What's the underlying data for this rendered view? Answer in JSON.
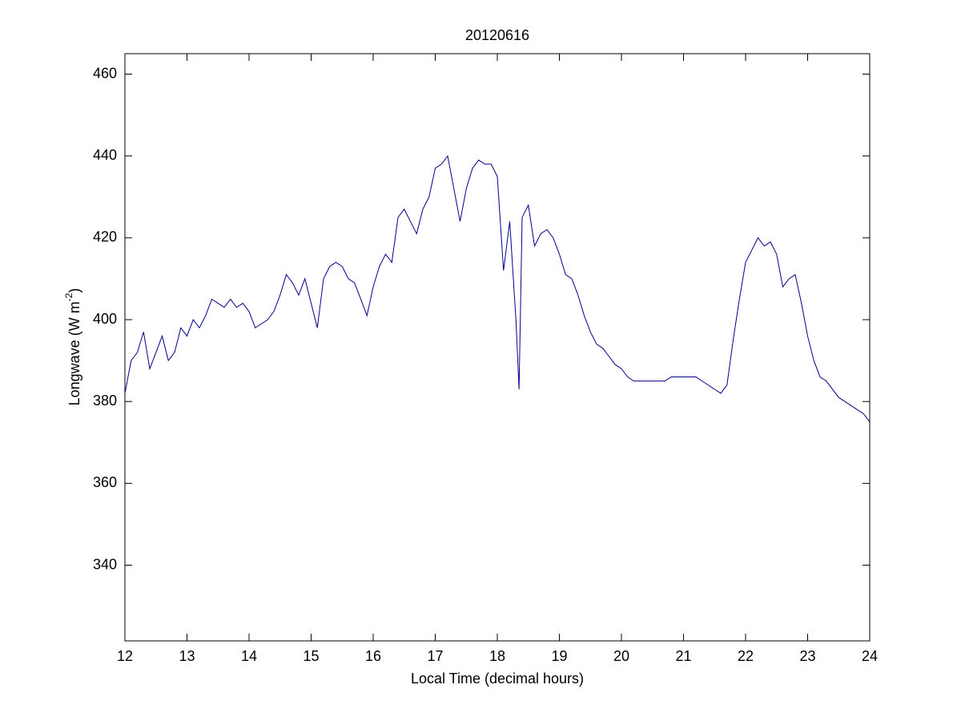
{
  "chart_data": {
    "type": "line",
    "title": "20120616",
    "xlabel": "Local Time (decimal hours)",
    "ylabel": [
      "Longwave (W m",
      "-2",
      ")"
    ],
    "xlim": [
      12,
      24
    ],
    "xticks": [
      12,
      13,
      14,
      15,
      16,
      17,
      18,
      19,
      20,
      21,
      22,
      23,
      24
    ],
    "ylim": [
      321.5,
      465
    ],
    "yticks": [
      340,
      360,
      380,
      400,
      420,
      440,
      460
    ],
    "grid": false,
    "series": [
      {
        "color": "#00008b",
        "x": [
          12.0,
          12.1,
          12.2,
          12.3,
          12.4,
          12.5,
          12.6,
          12.7,
          12.8,
          12.9,
          13.0,
          13.1,
          13.2,
          13.3,
          13.4,
          13.5,
          13.6,
          13.7,
          13.8,
          13.9,
          14.0,
          14.1,
          14.2,
          14.3,
          14.4,
          14.5,
          14.6,
          14.7,
          14.8,
          14.9,
          15.0,
          15.1,
          15.2,
          15.3,
          15.4,
          15.5,
          15.6,
          15.7,
          15.8,
          15.9,
          16.0,
          16.1,
          16.2,
          16.3,
          16.4,
          16.5,
          16.6,
          16.7,
          16.8,
          16.9,
          17.0,
          17.1,
          17.2,
          17.3,
          17.4,
          17.5,
          17.6,
          17.7,
          17.8,
          17.9,
          18.0,
          18.1,
          18.2,
          18.3,
          18.35,
          18.4,
          18.5,
          18.6,
          18.7,
          18.8,
          18.9,
          19.0,
          19.1,
          19.2,
          19.3,
          19.4,
          19.5,
          19.6,
          19.7,
          19.8,
          19.9,
          20.0,
          20.1,
          20.2,
          20.3,
          20.4,
          20.5,
          20.6,
          20.7,
          20.8,
          20.9,
          21.0,
          21.1,
          21.2,
          21.3,
          21.4,
          21.5,
          21.6,
          21.7,
          21.8,
          21.9,
          22.0,
          22.1,
          22.2,
          22.3,
          22.4,
          22.5,
          22.6,
          22.7,
          22.8,
          22.9,
          23.0,
          23.1,
          23.2,
          23.3,
          23.4,
          23.5,
          23.6,
          23.7,
          23.8,
          23.9,
          24.0
        ],
        "values": [
          382,
          390,
          392,
          397,
          388,
          392,
          396,
          390,
          392,
          398,
          396,
          400,
          398,
          401,
          405,
          404,
          403,
          405,
          403,
          404,
          402,
          398,
          399,
          400,
          402,
          406,
          411,
          409,
          406,
          410,
          404,
          398,
          410,
          413,
          414,
          413,
          410,
          409,
          405,
          401,
          408,
          413,
          416,
          414,
          425,
          427,
          424,
          421,
          427,
          430,
          437,
          438,
          440,
          432,
          424,
          432,
          437,
          439,
          438,
          438,
          435,
          412,
          424,
          400,
          383,
          425,
          428,
          418,
          421,
          422,
          420,
          416,
          411,
          410,
          406,
          401,
          397,
          394,
          393,
          391,
          389,
          388,
          386,
          385,
          385,
          385,
          385,
          385,
          385,
          386,
          386,
          386,
          386,
          386,
          385,
          384,
          383,
          382,
          384,
          395,
          405,
          414,
          417,
          420,
          418,
          419,
          416,
          408,
          410,
          411,
          404,
          396,
          390,
          386,
          385,
          383,
          381,
          380,
          379,
          378,
          377,
          375
        ]
      }
    ]
  }
}
